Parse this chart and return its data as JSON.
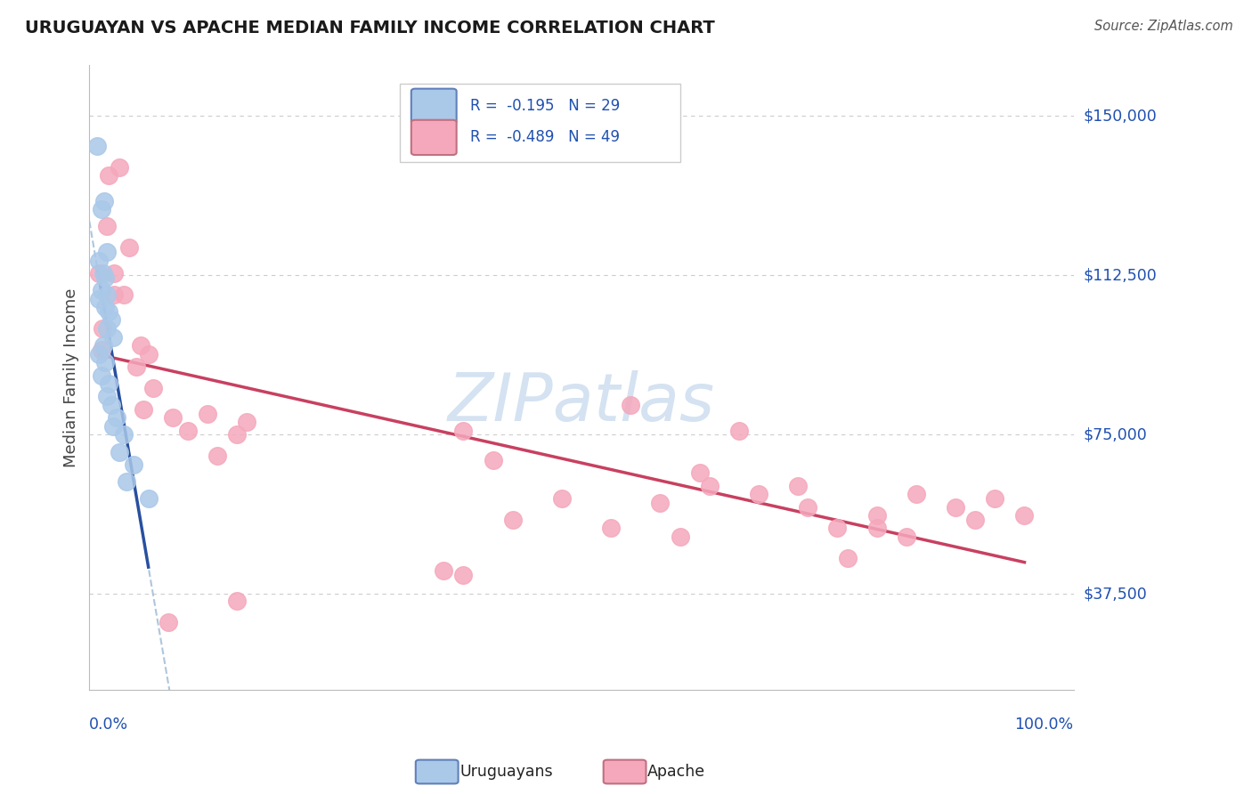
{
  "title": "URUGUAYAN VS APACHE MEDIAN FAMILY INCOME CORRELATION CHART",
  "source": "Source: ZipAtlas.com",
  "ylabel": "Median Family Income",
  "yticks": [
    37500,
    75000,
    112500,
    150000
  ],
  "ytick_labels": [
    "$37,500",
    "$75,000",
    "$112,500",
    "$150,000"
  ],
  "ylim": [
    15000,
    162000
  ],
  "xlim": [
    0.0,
    1.0
  ],
  "legend_entry1": "R =  -0.195   N = 29",
  "legend_entry2": "R =  -0.489   N = 49",
  "legend_label1": "Uruguayans",
  "legend_label2": "Apache",
  "uruguayan_color": "#aac8e8",
  "apache_color": "#f5a8bc",
  "trend_uru_color": "#2850a0",
  "trend_apa_color": "#c84060",
  "dashed_color": "#a0bcd8",
  "bg_color": "#ffffff",
  "grid_color": "#cccccc",
  "watermark_color": "#d0dff0",
  "title_color": "#1a1a1a",
  "blue_text": "#2050b0",
  "uruguayan_x": [
    0.008,
    0.012,
    0.015,
    0.018,
    0.01,
    0.014,
    0.016,
    0.012,
    0.018,
    0.01,
    0.016,
    0.02,
    0.022,
    0.018,
    0.024,
    0.014,
    0.01,
    0.016,
    0.012,
    0.02,
    0.018,
    0.022,
    0.028,
    0.024,
    0.035,
    0.03,
    0.045,
    0.038,
    0.06
  ],
  "uruguayan_y": [
    143000,
    128000,
    130000,
    118000,
    116000,
    113000,
    112000,
    109000,
    108000,
    107000,
    105000,
    104000,
    102000,
    100000,
    98000,
    96000,
    94000,
    92000,
    89000,
    87000,
    84000,
    82000,
    79000,
    77000,
    75000,
    71000,
    68000,
    64000,
    60000
  ],
  "apache_x": [
    0.01,
    0.018,
    0.013,
    0.025,
    0.02,
    0.012,
    0.03,
    0.025,
    0.04,
    0.035,
    0.052,
    0.048,
    0.065,
    0.06,
    0.055,
    0.085,
    0.1,
    0.13,
    0.12,
    0.16,
    0.15,
    0.38,
    0.41,
    0.55,
    0.62,
    0.66,
    0.72,
    0.76,
    0.8,
    0.84,
    0.88,
    0.9,
    0.83,
    0.8,
    0.77,
    0.73,
    0.68,
    0.63,
    0.58,
    0.53,
    0.48,
    0.43,
    0.38,
    0.92,
    0.95,
    0.6,
    0.36,
    0.15,
    0.08
  ],
  "apache_y": [
    113000,
    124000,
    100000,
    108000,
    136000,
    95000,
    138000,
    113000,
    119000,
    108000,
    96000,
    91000,
    86000,
    94000,
    81000,
    79000,
    76000,
    70000,
    80000,
    78000,
    75000,
    76000,
    69000,
    82000,
    66000,
    76000,
    63000,
    53000,
    56000,
    61000,
    58000,
    55000,
    51000,
    53000,
    46000,
    58000,
    61000,
    63000,
    59000,
    53000,
    60000,
    55000,
    42000,
    60000,
    56000,
    51000,
    43000,
    36000,
    31000
  ]
}
